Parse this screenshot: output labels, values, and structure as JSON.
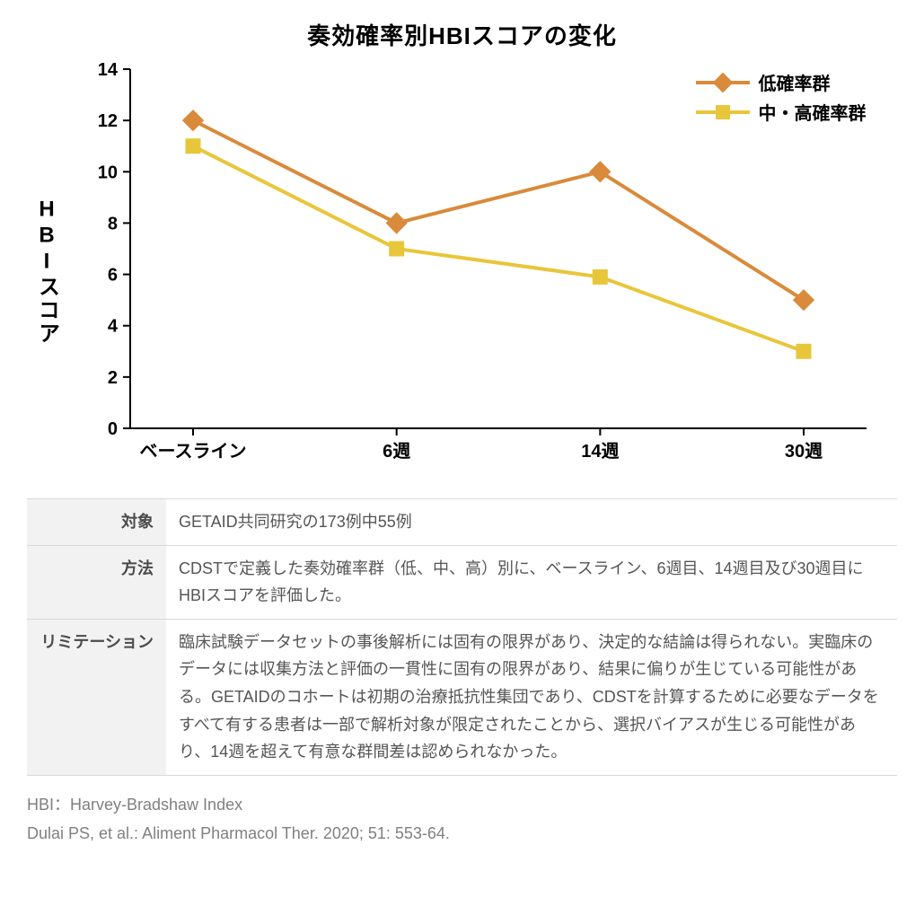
{
  "title": "奏効確率別HBIスコアの変化",
  "chart": {
    "type": "line",
    "y_label": "HBIスコア",
    "y_ticks": [
      0,
      2,
      4,
      6,
      8,
      10,
      12,
      14
    ],
    "y_min": 0,
    "y_max": 14,
    "x_labels": [
      "ベースライン",
      "6週",
      "14週",
      "30週"
    ],
    "background_color": "#ffffff",
    "axis_color": "#000000",
    "axis_width": 2,
    "line_width": 4,
    "marker_size": 16,
    "tick_font_size": 20,
    "tick_font_weight": "700",
    "x_tick_font_size": 20,
    "title_font_size": 26,
    "series": [
      {
        "label": "低確率群",
        "color": "#d98a3a",
        "marker": "diamond",
        "values": [
          12.0,
          8.0,
          10.0,
          5.0
        ]
      },
      {
        "label": "中・高確率群",
        "color": "#e8c63a",
        "marker": "square",
        "values": [
          11.0,
          7.0,
          5.9,
          3.0
        ]
      }
    ]
  },
  "table": {
    "rows": [
      {
        "label": "対象",
        "text": "GETAID共同研究の173例中55例"
      },
      {
        "label": "方法",
        "text": "CDSTで定義した奏効確率群（低、中、高）別に、ベースライン、6週目、14週目及び30週目にHBIスコアを評価した。"
      },
      {
        "label": "リミテーション",
        "text": "臨床試験データセットの事後解析には固有の限界があり、決定的な結論は得られない。実臨床のデータには収集方法と評価の一貫性に固有の限界があり、結果に偏りが生じている可能性がある。GETAIDのコホートは初期の治療抵抗性集団であり、CDSTを計算するために必要なデータをすべて有する患者は一部で解析対象が限定されたことから、選択バイアスが生じる可能性があり、14週を超えて有意な群間差は認められなかった。"
      }
    ]
  },
  "footnotes": [
    "HBI：Harvey-Bradshaw Index",
    "Dulai PS, et al.: Aliment Pharmacol Ther. 2020; 51: 553-64."
  ]
}
